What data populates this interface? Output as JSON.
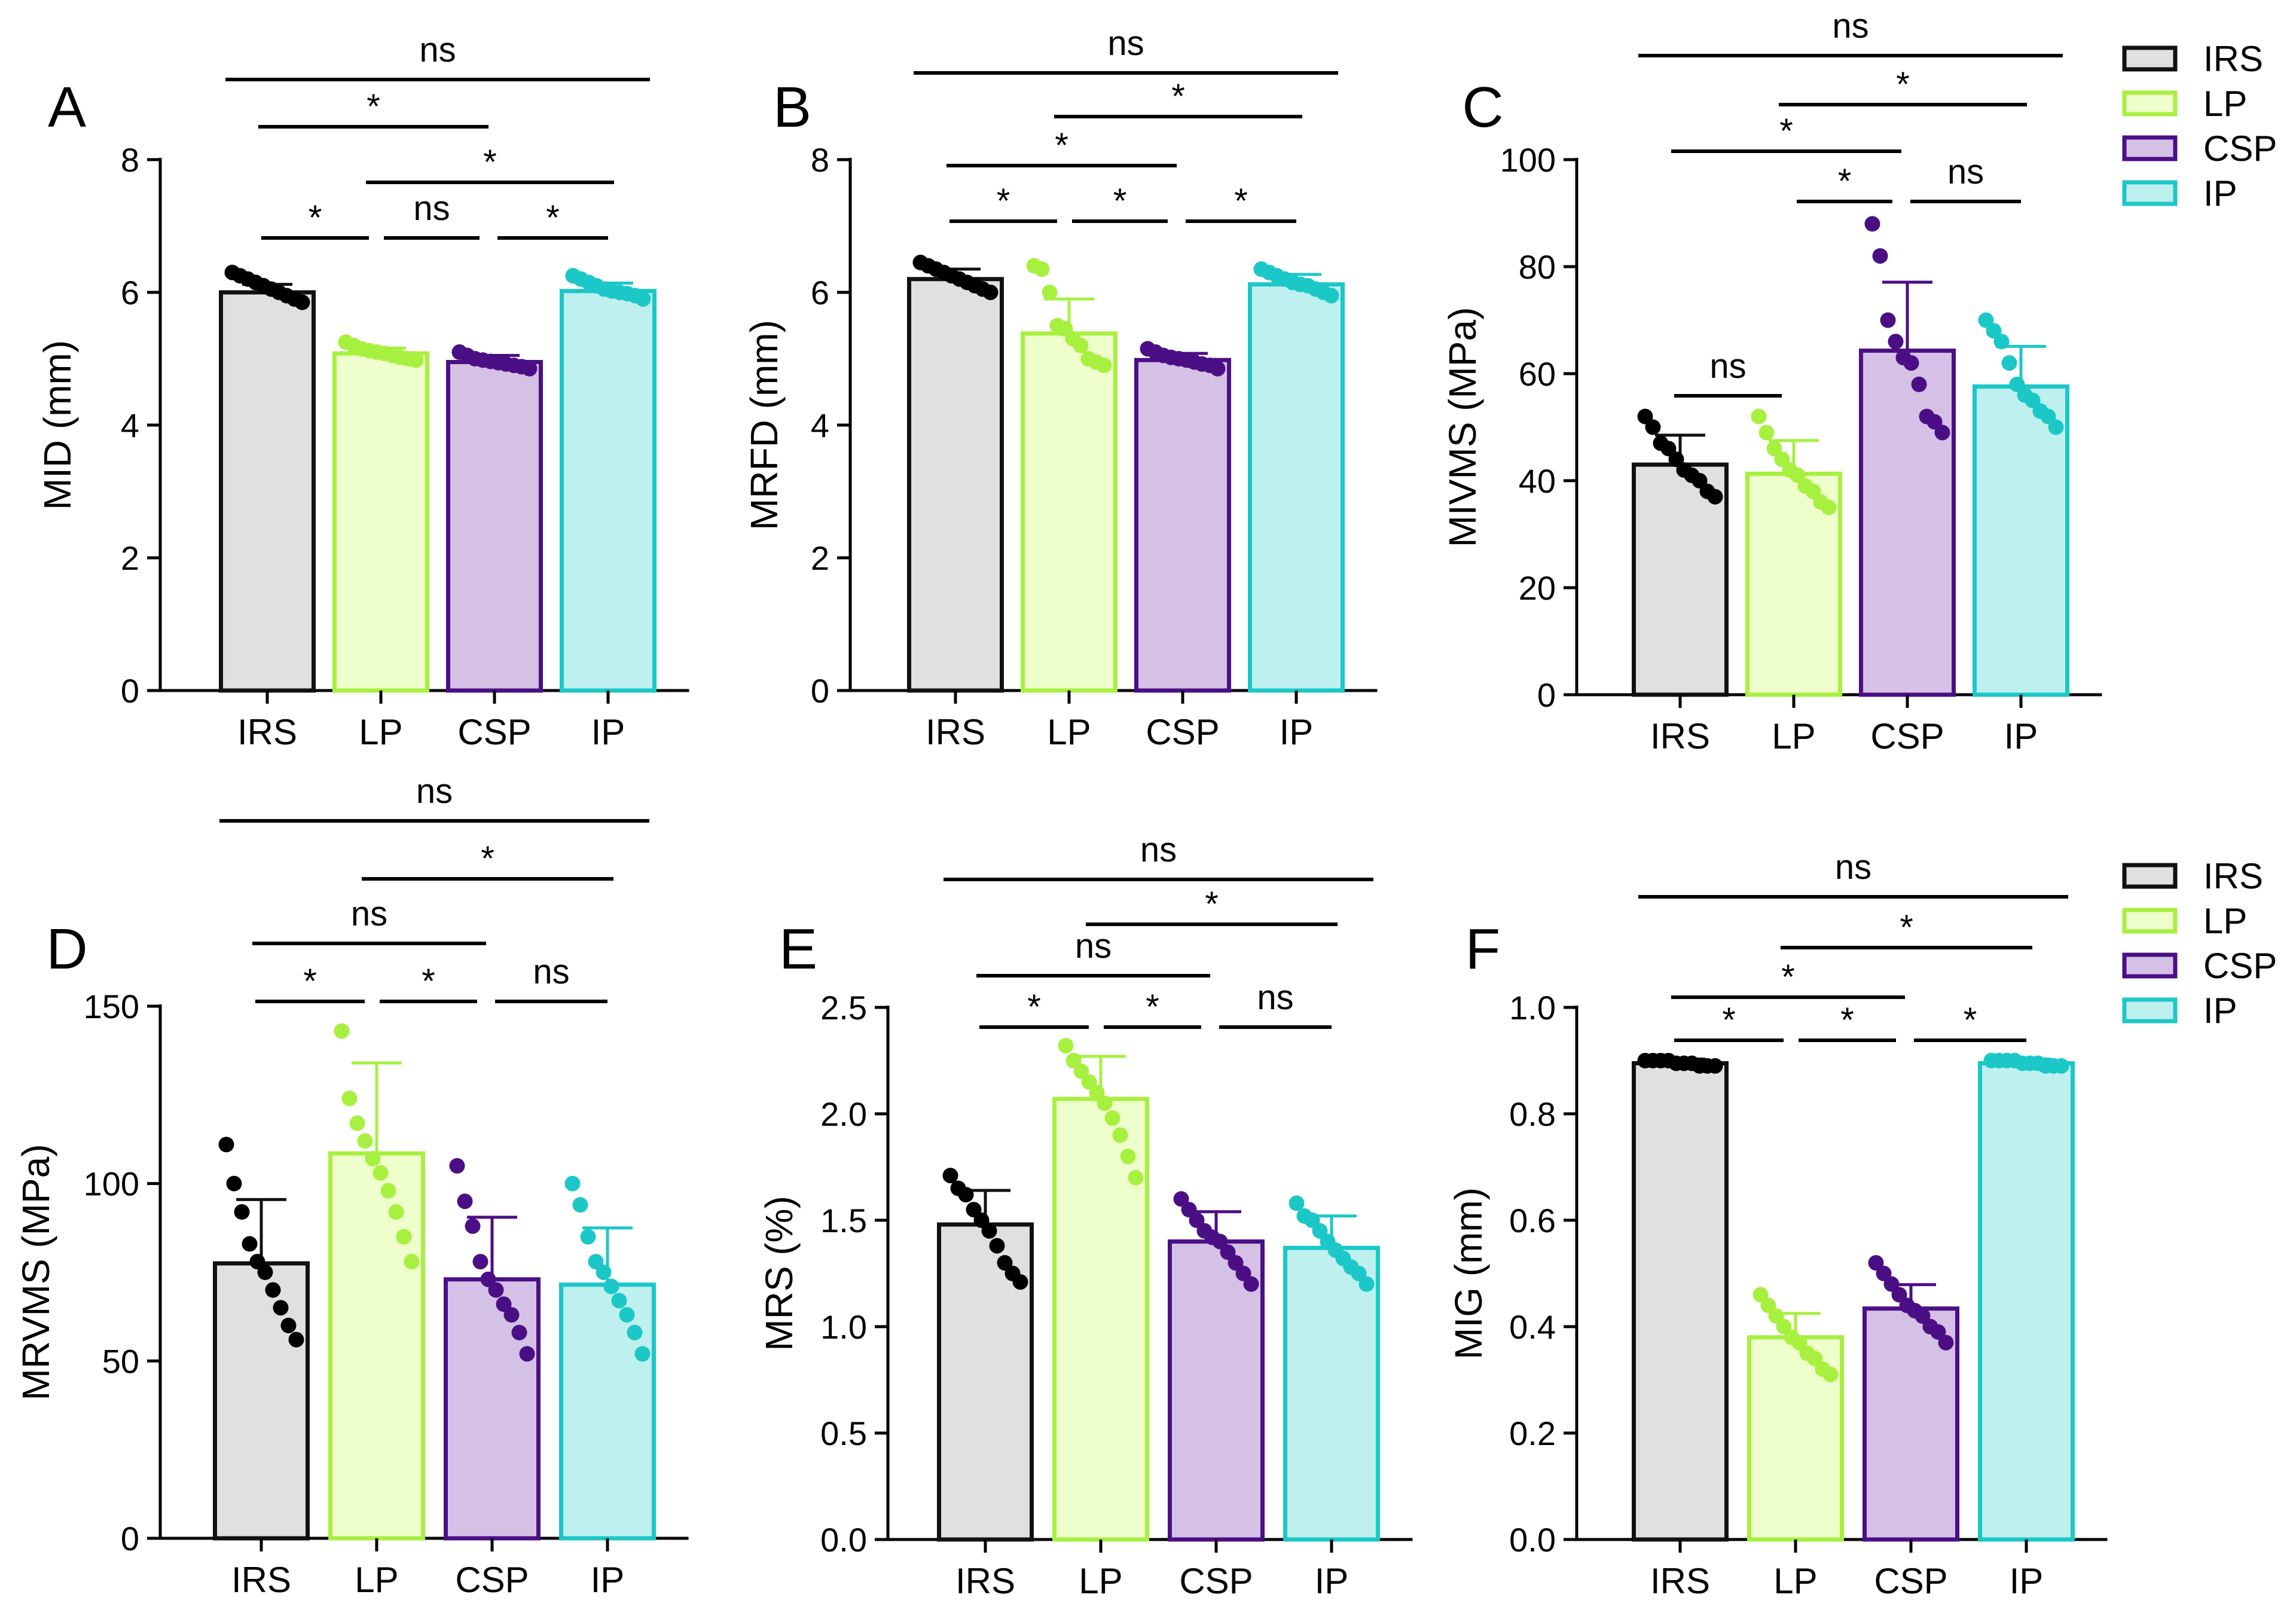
{
  "colors": {
    "IRS": {
      "fill": "#e0e0e0",
      "stroke": "#111111",
      "dot": "#000000"
    },
    "LP": {
      "fill": "#eeffcc",
      "stroke": "#a8f040",
      "dot": "#a8f040"
    },
    "CSP": {
      "fill": "#d5c0e6",
      "stroke": "#4b0f85",
      "dot": "#4b0f85"
    },
    "IP": {
      "fill": "#bdf0ef",
      "stroke": "#1cc7c7",
      "dot": "#1cc7c7"
    }
  },
  "legend": {
    "top": {
      "items": [
        "IRS",
        "LP",
        "CSP",
        "IP"
      ]
    },
    "bottom": {
      "items": [
        "IRS",
        "LP",
        "CSP",
        "IP"
      ]
    }
  },
  "chart_data": [
    {
      "panel": "A",
      "type": "bar",
      "title": "",
      "categories": [
        "IRS",
        "LP",
        "CSP",
        "IP"
      ],
      "ylabel": "MID (mm)",
      "xlabel": "",
      "ylim": [
        0,
        8
      ],
      "yticks": [
        0,
        2,
        4,
        6,
        8
      ],
      "ytick_labels": [
        "0",
        "2",
        "4",
        "6",
        "8"
      ],
      "values": [
        6.0,
        5.08,
        4.95,
        6.02
      ],
      "errors": [
        0.12,
        0.08,
        0.1,
        0.12
      ],
      "points": [
        [
          6.3,
          6.25,
          6.2,
          6.15,
          6.1,
          6.05,
          6.0,
          5.95,
          5.9,
          5.85
        ],
        [
          5.25,
          5.2,
          5.15,
          5.12,
          5.1,
          5.08,
          5.05,
          5.02,
          5.0,
          4.98
        ],
        [
          5.1,
          5.05,
          5.0,
          4.98,
          4.96,
          4.94,
          4.92,
          4.9,
          4.88,
          4.85
        ],
        [
          6.25,
          6.2,
          6.15,
          6.1,
          6.05,
          6.02,
          6.0,
          5.98,
          5.95,
          5.9
        ]
      ],
      "comparisons": [
        {
          "from": 0,
          "to": 3,
          "label": "ns"
        },
        {
          "from": 0,
          "to": 2,
          "label": "*"
        },
        {
          "from": 1,
          "to": 3,
          "label": "*"
        },
        {
          "from": 0,
          "to": 1,
          "label": "*"
        },
        {
          "from": 1,
          "to": 2,
          "label": "ns"
        },
        {
          "from": 2,
          "to": 3,
          "label": "*"
        }
      ]
    },
    {
      "panel": "B",
      "type": "bar",
      "title": "",
      "categories": [
        "IRS",
        "LP",
        "CSP",
        "IP"
      ],
      "ylabel": "MRFD (mm)",
      "xlabel": "",
      "ylim": [
        0,
        8
      ],
      "yticks": [
        0,
        2,
        4,
        6,
        8
      ],
      "ytick_labels": [
        "0",
        "2",
        "4",
        "6",
        "8"
      ],
      "values": [
        6.2,
        5.38,
        4.98,
        6.12
      ],
      "errors": [
        0.15,
        0.52,
        0.1,
        0.15
      ],
      "points": [
        [
          6.45,
          6.4,
          6.35,
          6.3,
          6.25,
          6.2,
          6.15,
          6.1,
          6.05,
          6.0
        ],
        [
          6.4,
          6.35,
          6.0,
          5.5,
          5.45,
          5.3,
          5.2,
          5.0,
          4.95,
          4.9
        ],
        [
          5.15,
          5.1,
          5.05,
          5.02,
          5.0,
          4.98,
          4.95,
          4.92,
          4.9,
          4.85
        ],
        [
          6.35,
          6.3,
          6.25,
          6.2,
          6.15,
          6.12,
          6.1,
          6.05,
          6.0,
          5.95
        ]
      ],
      "comparisons": [
        {
          "from": 0,
          "to": 3,
          "label": "ns"
        },
        {
          "from": 1,
          "to": 3,
          "label": "*"
        },
        {
          "from": 0,
          "to": 2,
          "label": "*"
        },
        {
          "from": 0,
          "to": 1,
          "label": "*"
        },
        {
          "from": 1,
          "to": 2,
          "label": "*"
        },
        {
          "from": 2,
          "to": 3,
          "label": "*"
        }
      ]
    },
    {
      "panel": "C",
      "type": "bar",
      "title": "",
      "categories": [
        "IRS",
        "LP",
        "CSP",
        "IP"
      ],
      "ylabel": "MIVMS (MPa)",
      "xlabel": "",
      "ylim": [
        0,
        100
      ],
      "yticks": [
        0,
        20,
        40,
        60,
        80,
        100
      ],
      "ytick_labels": [
        "0",
        "20",
        "40",
        "60",
        "80",
        "100"
      ],
      "values": [
        43,
        41.3,
        64.3,
        57.6
      ],
      "errors": [
        5.5,
        6.2,
        12.8,
        7.5
      ],
      "points": [
        [
          52,
          50,
          47,
          46,
          44,
          42,
          41,
          40,
          38,
          37
        ],
        [
          52,
          49,
          46,
          44,
          42,
          41,
          39,
          38,
          36,
          35
        ],
        [
          88,
          82,
          70,
          66,
          63,
          62,
          58,
          52,
          51,
          49
        ],
        [
          70,
          68,
          66,
          62,
          58,
          56,
          55,
          53,
          52,
          50
        ]
      ],
      "comparisons": [
        {
          "from": 0,
          "to": 3,
          "label": "ns"
        },
        {
          "from": 1,
          "to": 3,
          "label": "*"
        },
        {
          "from": 0,
          "to": 2,
          "label": "*"
        },
        {
          "from": 1,
          "to": 2,
          "label": "*"
        },
        {
          "from": 2,
          "to": 3,
          "label": "ns"
        },
        {
          "from": 0,
          "to": 1,
          "label": "ns"
        }
      ]
    },
    {
      "panel": "D",
      "type": "bar",
      "title": "",
      "categories": [
        "IRS",
        "LP",
        "CSP",
        "IP"
      ],
      "ylabel": "MRVMS (MPa)",
      "xlabel": "",
      "ylim": [
        0,
        150
      ],
      "yticks": [
        0,
        50,
        100,
        150
      ],
      "ytick_labels": [
        "0",
        "50",
        "100",
        "150"
      ],
      "values": [
        77.5,
        108.5,
        73,
        71.5
      ],
      "errors": [
        18,
        25.5,
        17.5,
        16
      ],
      "points": [
        [
          111,
          100,
          92,
          83,
          78,
          75,
          70,
          65,
          60,
          56
        ],
        [
          143,
          124,
          117,
          112,
          107,
          103,
          98,
          92,
          85,
          78
        ],
        [
          105,
          95,
          88,
          78,
          73,
          70,
          66,
          63,
          58,
          52
        ],
        [
          100,
          94,
          85,
          78,
          75,
          71,
          67,
          63,
          58,
          52
        ]
      ],
      "comparisons": [
        {
          "from": 0,
          "to": 3,
          "label": "ns"
        },
        {
          "from": 1,
          "to": 3,
          "label": "*"
        },
        {
          "from": 0,
          "to": 2,
          "label": "ns"
        },
        {
          "from": 0,
          "to": 1,
          "label": "*"
        },
        {
          "from": 1,
          "to": 2,
          "label": "*"
        },
        {
          "from": 2,
          "to": 3,
          "label": "ns"
        }
      ]
    },
    {
      "panel": "E",
      "type": "bar",
      "title": "",
      "categories": [
        "IRS",
        "LP",
        "CSP",
        "IP"
      ],
      "ylabel": "MRS (%)",
      "xlabel": "",
      "ylim": [
        0,
        2.5
      ],
      "yticks": [
        0,
        0.5,
        1,
        1.5,
        2,
        2.5
      ],
      "ytick_labels": [
        "0.0",
        "0.5",
        "1.0",
        "1.5",
        "2.0",
        "2.5"
      ],
      "values": [
        1.48,
        2.07,
        1.4,
        1.37
      ],
      "errors": [
        0.16,
        0.2,
        0.14,
        0.15
      ],
      "points": [
        [
          1.71,
          1.65,
          1.62,
          1.55,
          1.5,
          1.45,
          1.38,
          1.3,
          1.25,
          1.21
        ],
        [
          2.32,
          2.25,
          2.2,
          2.15,
          2.1,
          2.05,
          1.98,
          1.9,
          1.8,
          1.7
        ],
        [
          1.6,
          1.55,
          1.5,
          1.45,
          1.42,
          1.4,
          1.35,
          1.3,
          1.25,
          1.2
        ],
        [
          1.58,
          1.52,
          1.5,
          1.45,
          1.4,
          1.36,
          1.32,
          1.28,
          1.25,
          1.2
        ]
      ],
      "comparisons": [
        {
          "from": 0,
          "to": 3,
          "label": "ns"
        },
        {
          "from": 1,
          "to": 3,
          "label": "*"
        },
        {
          "from": 0,
          "to": 2,
          "label": "ns"
        },
        {
          "from": 0,
          "to": 1,
          "label": "*"
        },
        {
          "from": 1,
          "to": 2,
          "label": "*"
        },
        {
          "from": 2,
          "to": 3,
          "label": "ns"
        }
      ]
    },
    {
      "panel": "F",
      "type": "bar",
      "title": "",
      "categories": [
        "IRS",
        "LP",
        "CSP",
        "IP"
      ],
      "ylabel": "MIG (mm)",
      "xlabel": "",
      "ylim": [
        0,
        1
      ],
      "yticks": [
        0,
        0.2,
        0.4,
        0.6,
        0.8,
        1
      ],
      "ytick_labels": [
        "0.0",
        "0.2",
        "0.4",
        "0.6",
        "0.8",
        "1.0"
      ],
      "values": [
        0.895,
        0.38,
        0.434,
        0.895
      ],
      "errors": [
        0.008,
        0.045,
        0.045,
        0.008
      ],
      "points": [
        [
          0.9,
          0.9,
          0.9,
          0.9,
          0.895,
          0.895,
          0.895,
          0.89,
          0.89,
          0.89
        ],
        [
          0.46,
          0.44,
          0.42,
          0.4,
          0.38,
          0.37,
          0.35,
          0.34,
          0.32,
          0.31
        ],
        [
          0.52,
          0.5,
          0.48,
          0.46,
          0.44,
          0.43,
          0.42,
          0.4,
          0.39,
          0.37
        ],
        [
          0.9,
          0.9,
          0.9,
          0.9,
          0.895,
          0.895,
          0.895,
          0.89,
          0.89,
          0.89
        ]
      ],
      "comparisons": [
        {
          "from": 0,
          "to": 3,
          "label": "ns"
        },
        {
          "from": 1,
          "to": 3,
          "label": "*"
        },
        {
          "from": 0,
          "to": 2,
          "label": "*"
        },
        {
          "from": 0,
          "to": 1,
          "label": "*"
        },
        {
          "from": 1,
          "to": 2,
          "label": "*"
        },
        {
          "from": 2,
          "to": 3,
          "label": "*"
        }
      ]
    }
  ]
}
